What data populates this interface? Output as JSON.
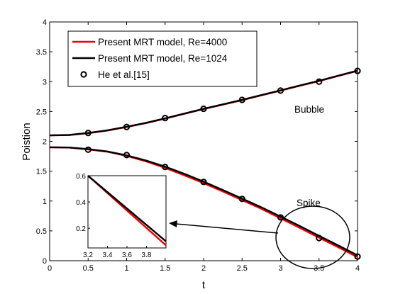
{
  "chart_data": {
    "type": "line",
    "xlabel": "t",
    "ylabel": "Poistion",
    "xlim": [
      0,
      4
    ],
    "ylim": [
      0,
      4
    ],
    "x_ticks": [
      "0",
      "0.5",
      "1",
      "1.5",
      "2",
      "2.5",
      "3",
      "3.5",
      "4"
    ],
    "y_ticks": [
      "0",
      "0.5",
      "1",
      "1.5",
      "2",
      "2.5",
      "3",
      "3.5",
      "4"
    ],
    "grid": false,
    "legend": "top-left",
    "series": [
      {
        "name": "Present MRT model, Re=4000",
        "color": "#ee0000",
        "bubble": {
          "x": [
            0,
            0.25,
            0.5,
            0.75,
            1,
            1.25,
            1.5,
            1.75,
            2,
            2.25,
            2.5,
            2.75,
            3,
            3.25,
            3.5,
            3.75,
            4
          ],
          "y": [
            2.1,
            2.105,
            2.135,
            2.18,
            2.24,
            2.305,
            2.38,
            2.46,
            2.54,
            2.615,
            2.69,
            2.77,
            2.85,
            2.93,
            3.01,
            3.095,
            3.18
          ]
        },
        "spike": {
          "x": [
            0,
            0.25,
            0.5,
            0.75,
            1,
            1.25,
            1.5,
            1.75,
            2,
            2.25,
            2.5,
            2.75,
            3,
            3.25,
            3.5,
            3.75,
            4
          ],
          "y": [
            1.9,
            1.895,
            1.865,
            1.825,
            1.755,
            1.665,
            1.555,
            1.43,
            1.3,
            1.16,
            1.015,
            0.87,
            0.71,
            0.55,
            0.385,
            0.225,
            0.06
          ]
        }
      },
      {
        "name": "Present MRT model, Re=1024",
        "color": "#000000",
        "bubble": {
          "x": [
            0,
            0.25,
            0.5,
            0.75,
            1,
            1.25,
            1.5,
            1.75,
            2,
            2.25,
            2.5,
            2.75,
            3,
            3.25,
            3.5,
            3.75,
            4
          ],
          "y": [
            2.1,
            2.107,
            2.14,
            2.185,
            2.245,
            2.31,
            2.385,
            2.465,
            2.545,
            2.62,
            2.695,
            2.775,
            2.855,
            2.935,
            3.015,
            3.1,
            3.185
          ]
        },
        "spike": {
          "x": [
            0,
            0.25,
            0.5,
            0.75,
            1,
            1.25,
            1.5,
            1.75,
            2,
            2.25,
            2.5,
            2.75,
            3,
            3.25,
            3.5,
            3.75,
            4
          ],
          "y": [
            1.9,
            1.897,
            1.87,
            1.83,
            1.765,
            1.68,
            1.575,
            1.455,
            1.325,
            1.185,
            1.04,
            0.895,
            0.74,
            0.58,
            0.415,
            0.255,
            0.09
          ]
        }
      },
      {
        "name": "He et al.[15]",
        "color": "#000000",
        "marker": "circle",
        "bubble": {
          "x": [
            0.5,
            1,
            1.5,
            2,
            2.5,
            3,
            3.5,
            4
          ],
          "y": [
            2.14,
            2.24,
            2.39,
            2.545,
            2.695,
            2.85,
            3.0,
            3.18
          ]
        },
        "spike": {
          "x": [
            0.5,
            1,
            1.5,
            2,
            2.5,
            3,
            3.5,
            4
          ],
          "y": [
            1.86,
            1.77,
            1.57,
            1.32,
            1.035,
            0.725,
            0.38,
            0.07
          ]
        }
      }
    ],
    "annotations": [
      "Bubble",
      "Spike"
    ],
    "inset": {
      "xlim": [
        3.2,
        4.0
      ],
      "ylim": [
        0.05,
        0.6
      ],
      "x_ticks": [
        "3.2",
        "3.4",
        "3.6",
        "3.8"
      ],
      "y_ticks": [
        "0.2",
        "0.4",
        "0.6"
      ],
      "series": [
        {
          "color": "#ee0000",
          "x": [
            3.2,
            4.0
          ],
          "y": [
            0.6,
            0.07
          ]
        },
        {
          "color": "#000000",
          "x": [
            3.2,
            4.0
          ],
          "y": [
            0.6,
            0.1
          ]
        }
      ]
    }
  }
}
